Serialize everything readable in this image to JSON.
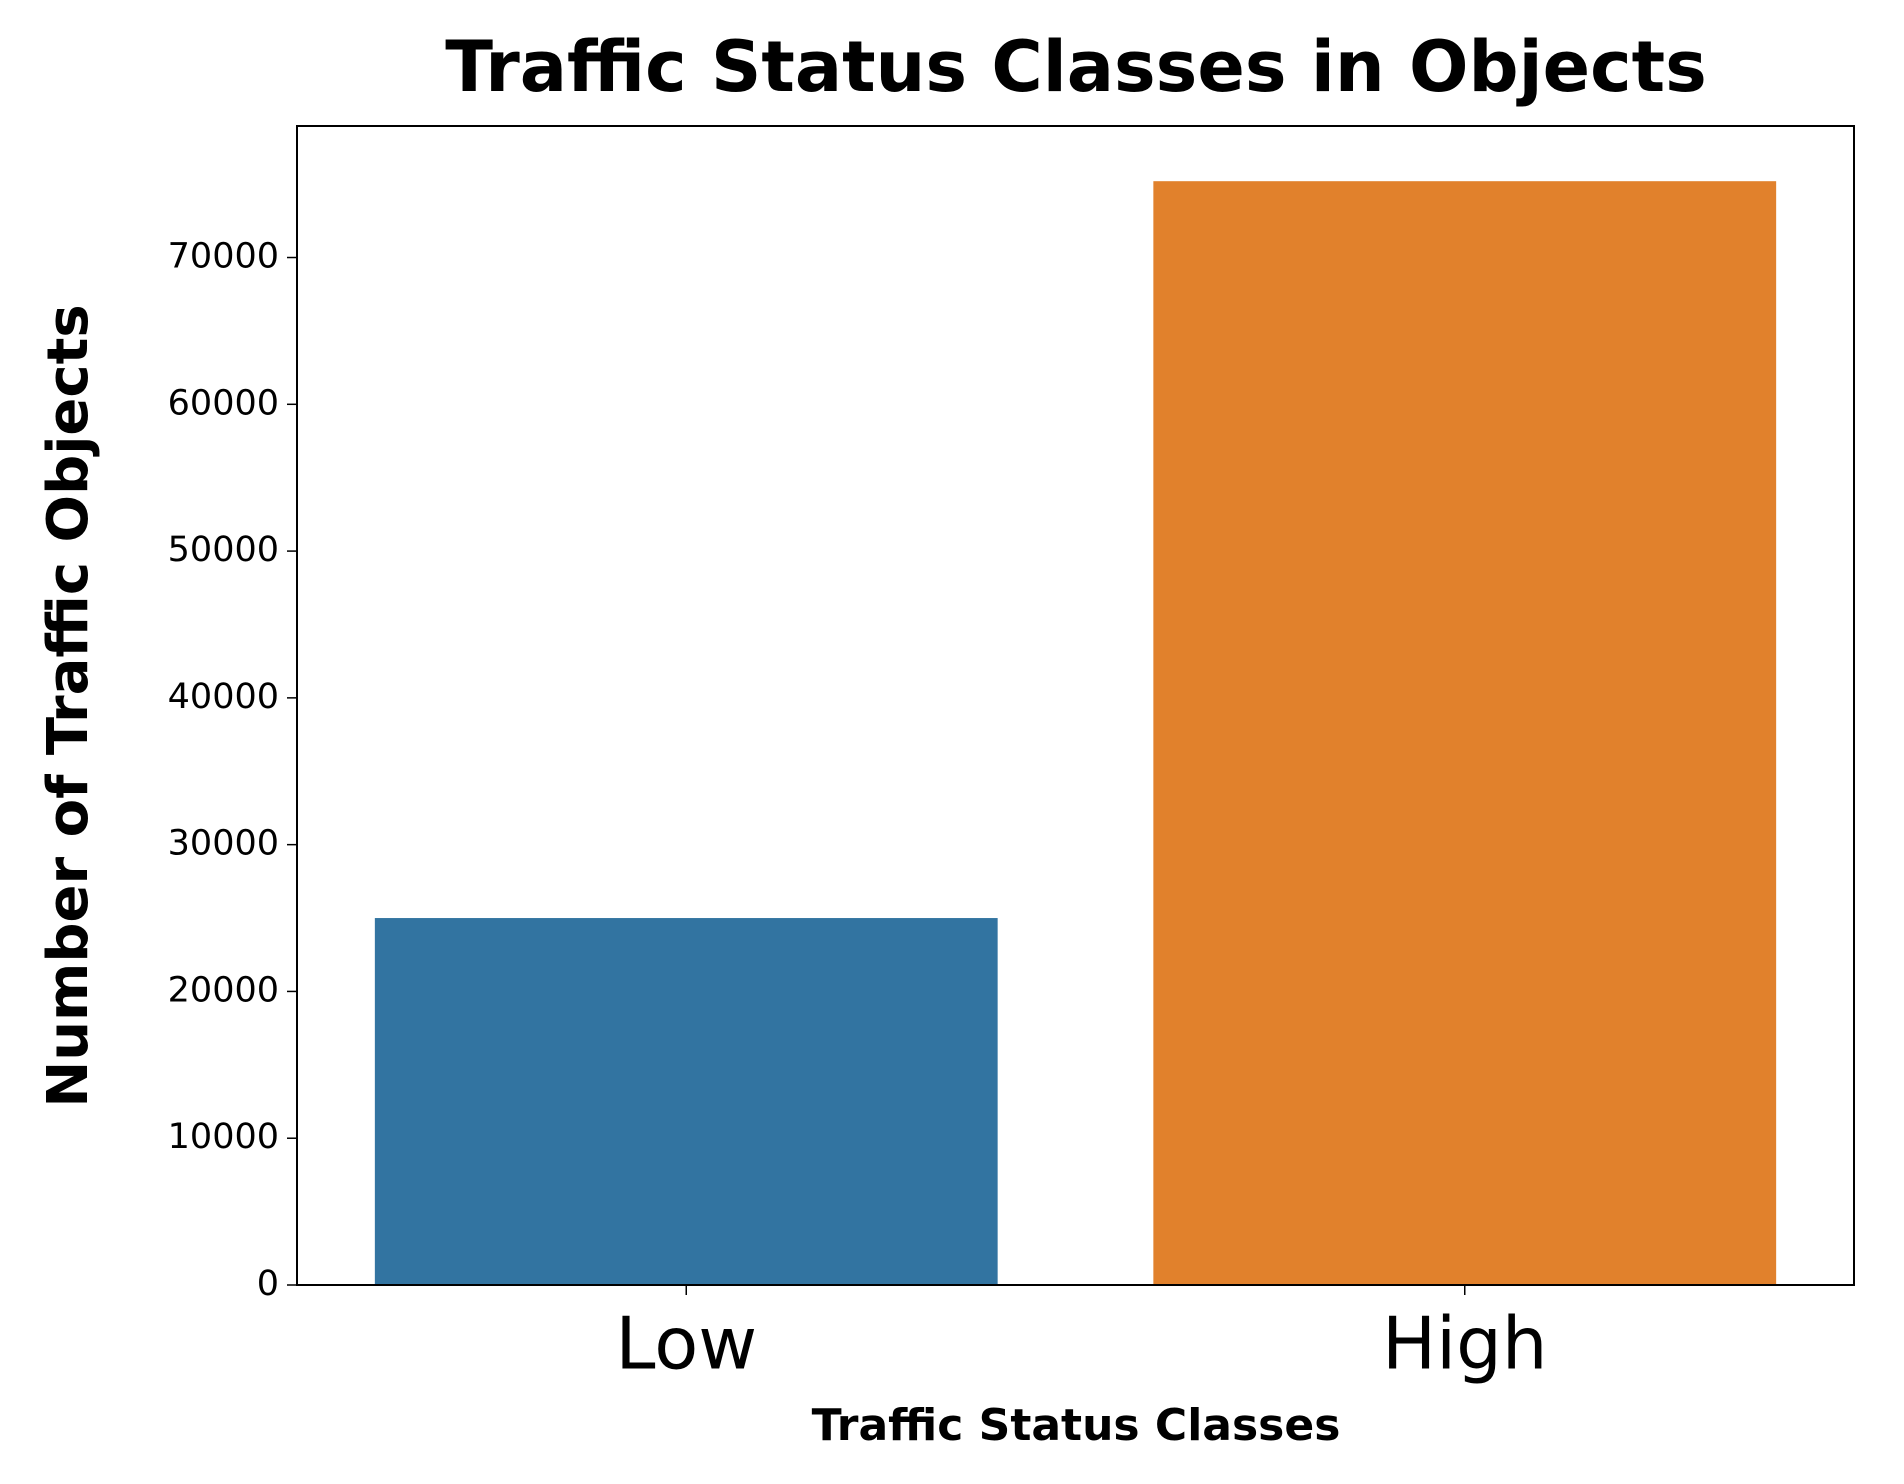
{
  "chart_data": {
    "type": "bar",
    "title": "Traffic Status Classes in Objects",
    "x_label": "Traffic Status Classes",
    "y_label": "Number of Traffic Objects",
    "categories": [
      "Low",
      "High"
    ],
    "values": [
      25000,
      75200
    ],
    "colors": [
      "#3274a1",
      "#e1812c"
    ],
    "ylim": [
      0,
      78960
    ],
    "yticks": [
      0,
      10000,
      20000,
      30000,
      40000,
      50000,
      60000,
      70000
    ],
    "grid": false
  }
}
